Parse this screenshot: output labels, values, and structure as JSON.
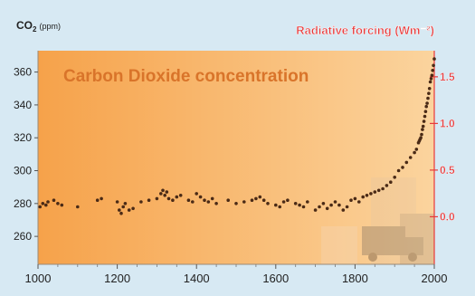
{
  "colors": {
    "background": "#d7e9f3",
    "plot_gradient_left": "#f6a24a",
    "plot_gradient_right": "#fbd49e",
    "title": "#d9742a",
    "axis_right": "#e8393a",
    "axis_left": "#222222",
    "points": "#4a2a16"
  },
  "chart_data": {
    "type": "scatter",
    "title": "Carbon Dioxide concentration",
    "ylabel": {
      "main": "CO",
      "sub": "2",
      "unit": "(ppm)"
    },
    "y2label": "Radiative forcing (Wm⁻²)",
    "xlim": [
      1000,
      2000
    ],
    "ylim": [
      243,
      373
    ],
    "y2lim": [
      -0.51,
      1.78
    ],
    "x_ticks": [
      "1000",
      "1200",
      "1400",
      "1600",
      "1800",
      "2000"
    ],
    "x_tick_values": [
      1000,
      1200,
      1400,
      1600,
      1800,
      2000
    ],
    "y_ticks": [
      "260",
      "280",
      "300",
      "320",
      "340",
      "360"
    ],
    "y_tick_values": [
      260,
      280,
      300,
      320,
      340,
      360
    ],
    "y2_ticks": [
      "0.0",
      "0.5",
      "1.0",
      "1.5"
    ],
    "y2_tick_values": [
      0.0,
      0.5,
      1.0,
      1.5
    ],
    "grid": false,
    "series": [
      {
        "x": [
          1005,
          1012,
          1020,
          1025,
          1040,
          1050,
          1060,
          1100,
          1150,
          1160,
          1200,
          1205,
          1210,
          1215,
          1220,
          1230,
          1240,
          1260,
          1280,
          1300,
          1310,
          1315,
          1320,
          1325,
          1330,
          1340,
          1350,
          1360,
          1380,
          1390,
          1400,
          1410,
          1420,
          1430,
          1440,
          1450,
          1480,
          1500,
          1520,
          1540,
          1550,
          1560,
          1570,
          1580,
          1600,
          1610,
          1620,
          1630,
          1650,
          1660,
          1670,
          1680,
          1700,
          1710,
          1720,
          1730,
          1740,
          1750,
          1760,
          1770,
          1780,
          1790,
          1800,
          1810,
          1820,
          1830,
          1840,
          1850,
          1860,
          1870,
          1880,
          1890,
          1900,
          1910,
          1920,
          1930,
          1940,
          1950,
          1955,
          1960,
          1962,
          1964,
          1966,
          1968,
          1970,
          1972,
          1974,
          1976,
          1978,
          1980,
          1982,
          1984,
          1986,
          1988,
          1990,
          1992,
          1994,
          1996,
          1998,
          2000
        ],
        "y": [
          278,
          280,
          279,
          281,
          282,
          280,
          279,
          278,
          282,
          283,
          281,
          276,
          274,
          278,
          280,
          276,
          277,
          281,
          282,
          283,
          286,
          288,
          285,
          287,
          283,
          282,
          284,
          285,
          282,
          281,
          286,
          284,
          282,
          281,
          283,
          280,
          282,
          280,
          281,
          282,
          283,
          284,
          282,
          280,
          279,
          278,
          281,
          282,
          280,
          279,
          278,
          281,
          276,
          278,
          280,
          277,
          279,
          281,
          279,
          276,
          278,
          282,
          283,
          281,
          284,
          285,
          286,
          287,
          288,
          289,
          291,
          293,
          296,
          300,
          302,
          305,
          308,
          311,
          313,
          317,
          318,
          319,
          320,
          322,
          325,
          327,
          330,
          333,
          336,
          339,
          341,
          344,
          347,
          350,
          354,
          356,
          358,
          361,
          364,
          368
        ]
      }
    ]
  }
}
